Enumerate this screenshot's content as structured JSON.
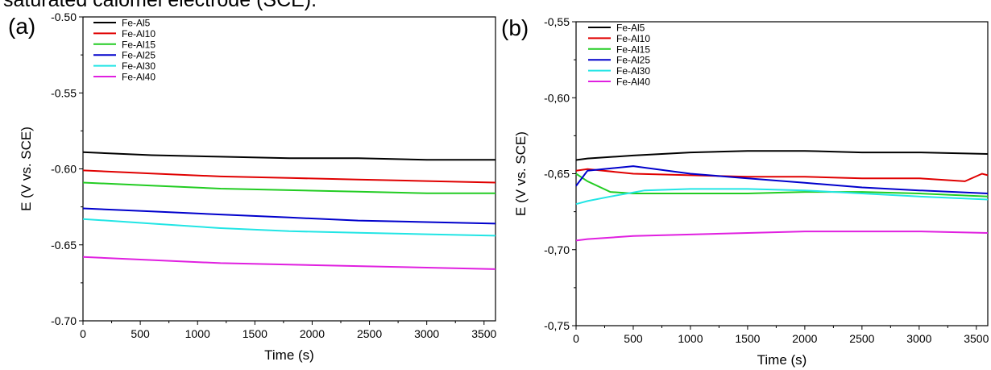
{
  "caption_fragment": "saturated calomel electrode (SCE).",
  "panels": [
    {
      "label": "(a)"
    },
    {
      "label": "(b)"
    }
  ],
  "chart_data": [
    {
      "type": "line",
      "panel": "(a)",
      "xlabel": "Time (s)",
      "ylabel": "E (V vs. SCE)",
      "xlim": [
        0,
        3600
      ],
      "ylim": [
        -0.7,
        -0.5
      ],
      "xticks": [
        0,
        500,
        1000,
        1500,
        2000,
        2500,
        3000,
        3500
      ],
      "yticks": [
        -0.7,
        -0.65,
        -0.6,
        -0.55,
        -0.5
      ],
      "xtick_labels": [
        "0",
        "500",
        "1000",
        "1500",
        "2000",
        "2500",
        "3000",
        "3500"
      ],
      "ytick_labels": [
        "-0.70",
        "-0.65",
        "-0.60",
        "-0.55",
        "-0.50"
      ],
      "legend_position": "top-left",
      "grid": false,
      "series": [
        {
          "name": "Fe-Al5",
          "color": "#000000",
          "x": [
            0,
            600,
            1200,
            1800,
            2400,
            3000,
            3600
          ],
          "y": [
            -0.589,
            -0.591,
            -0.592,
            -0.593,
            -0.593,
            -0.594,
            -0.594
          ]
        },
        {
          "name": "Fe-Al10",
          "color": "#e00000",
          "x": [
            0,
            600,
            1200,
            1800,
            2400,
            3000,
            3600
          ],
          "y": [
            -0.601,
            -0.603,
            -0.605,
            -0.606,
            -0.607,
            -0.608,
            -0.609
          ]
        },
        {
          "name": "Fe-Al15",
          "color": "#22cc22",
          "x": [
            0,
            600,
            1200,
            1800,
            2400,
            3000,
            3600
          ],
          "y": [
            -0.609,
            -0.611,
            -0.613,
            -0.614,
            -0.615,
            -0.616,
            -0.616
          ]
        },
        {
          "name": "Fe-Al25",
          "color": "#0000cc",
          "x": [
            0,
            600,
            1200,
            1800,
            2400,
            3000,
            3600
          ],
          "y": [
            -0.626,
            -0.628,
            -0.63,
            -0.632,
            -0.634,
            -0.635,
            -0.636
          ]
        },
        {
          "name": "Fe-Al30",
          "color": "#22e5e5",
          "x": [
            0,
            600,
            1200,
            1800,
            2400,
            3000,
            3600
          ],
          "y": [
            -0.633,
            -0.636,
            -0.639,
            -0.641,
            -0.642,
            -0.643,
            -0.644
          ]
        },
        {
          "name": "Fe-Al40",
          "color": "#e020e0",
          "x": [
            0,
            600,
            1200,
            1800,
            2400,
            3000,
            3600
          ],
          "y": [
            -0.658,
            -0.66,
            -0.662,
            -0.663,
            -0.664,
            -0.665,
            -0.666
          ]
        }
      ]
    },
    {
      "type": "line",
      "panel": "(b)",
      "xlabel": "Time (s)",
      "ylabel": "E (V vs. SCE)",
      "xlim": [
        0,
        3600
      ],
      "ylim": [
        -0.75,
        -0.55
      ],
      "xticks": [
        0,
        500,
        1000,
        1500,
        2000,
        2500,
        3000,
        3500
      ],
      "yticks": [
        -0.75,
        -0.7,
        -0.65,
        -0.6,
        -0.55
      ],
      "xtick_labels": [
        "0",
        "500",
        "1000",
        "1500",
        "2000",
        "2500",
        "3000",
        "3500"
      ],
      "ytick_labels": [
        "-0,75",
        "-0,70",
        "-0,65",
        "-0,60",
        "-0,55"
      ],
      "legend_position": "top-left",
      "grid": false,
      "series": [
        {
          "name": "Fe-Al5",
          "color": "#000000",
          "x": [
            0,
            100,
            500,
            1000,
            1500,
            2000,
            2500,
            3000,
            3600
          ],
          "y": [
            -0.641,
            -0.64,
            -0.638,
            -0.636,
            -0.635,
            -0.635,
            -0.636,
            -0.636,
            -0.637
          ]
        },
        {
          "name": "Fe-Al10",
          "color": "#e00000",
          "x": [
            0,
            100,
            500,
            1000,
            1500,
            2000,
            2500,
            3000,
            3400,
            3550,
            3600
          ],
          "y": [
            -0.648,
            -0.647,
            -0.65,
            -0.651,
            -0.652,
            -0.652,
            -0.653,
            -0.653,
            -0.655,
            -0.65,
            -0.651
          ]
        },
        {
          "name": "Fe-Al15",
          "color": "#22cc22",
          "x": [
            0,
            100,
            300,
            500,
            1000,
            1500,
            2000,
            2500,
            3000,
            3600
          ],
          "y": [
            -0.65,
            -0.655,
            -0.662,
            -0.663,
            -0.663,
            -0.663,
            -0.662,
            -0.662,
            -0.663,
            -0.665
          ]
        },
        {
          "name": "Fe-Al25",
          "color": "#0000cc",
          "x": [
            0,
            100,
            500,
            1000,
            1500,
            2000,
            2500,
            3000,
            3600
          ],
          "y": [
            -0.658,
            -0.648,
            -0.645,
            -0.65,
            -0.653,
            -0.656,
            -0.659,
            -0.661,
            -0.663
          ]
        },
        {
          "name": "Fe-Al30",
          "color": "#22e5e5",
          "x": [
            0,
            100,
            300,
            600,
            1000,
            1500,
            2000,
            2500,
            3000,
            3600
          ],
          "y": [
            -0.67,
            -0.668,
            -0.665,
            -0.661,
            -0.66,
            -0.66,
            -0.661,
            -0.663,
            -0.665,
            -0.667
          ]
        },
        {
          "name": "Fe-Al40",
          "color": "#e020e0",
          "x": [
            0,
            100,
            500,
            1000,
            1500,
            2000,
            2500,
            3000,
            3600
          ],
          "y": [
            -0.694,
            -0.693,
            -0.691,
            -0.69,
            -0.689,
            -0.688,
            -0.688,
            -0.688,
            -0.689
          ]
        }
      ]
    }
  ]
}
